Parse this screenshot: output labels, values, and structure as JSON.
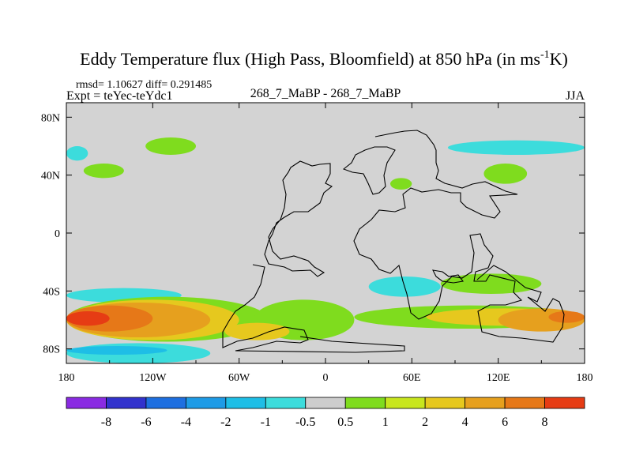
{
  "chart_data": {
    "type": "heatmap",
    "title_main": "Eddy Temperature flux (High Pass, Bloomfield) at 850 hPa (in ms",
    "title_sup": "-1",
    "title_tail": "K)",
    "stats_line": "rmsd= 1.10627 diff= 0.291485",
    "left_subtitle": "Expt = teYec-teYdc1",
    "center_subtitle": "268_7_MaBP - 268_7_MaBP",
    "season": "JJA",
    "x_range": [
      -180,
      180
    ],
    "y_range": [
      -90,
      90
    ],
    "x_ticks": [
      {
        "value": -180,
        "label": "180"
      },
      {
        "value": -120,
        "label": "120W"
      },
      {
        "value": -60,
        "label": "60W"
      },
      {
        "value": 0,
        "label": "0"
      },
      {
        "value": 60,
        "label": "60E"
      },
      {
        "value": 120,
        "label": "120E"
      },
      {
        "value": 180,
        "label": "180"
      }
    ],
    "y_ticks": [
      {
        "value": 80,
        "label": "80N"
      },
      {
        "value": 40,
        "label": "40N"
      },
      {
        "value": 0,
        "label": "0"
      },
      {
        "value": -40,
        "label": "40S"
      },
      {
        "value": -80,
        "label": "80S"
      }
    ],
    "colorbar": {
      "colors": [
        "#8a2be2",
        "#3232cd",
        "#1e6fe0",
        "#1e9be6",
        "#1ebee6",
        "#3cdcdc",
        "#cdcdcd",
        "#7fdc1e",
        "#c8e61e",
        "#e6c81e",
        "#e6a01e",
        "#e67818",
        "#e63c14"
      ],
      "labels": [
        "-8",
        "-6",
        "-4",
        "-2",
        "-1",
        "-0.5",
        "0.5",
        "1",
        "2",
        "4",
        "6",
        "8"
      ]
    },
    "background_color": "#d3d3d3",
    "contour_bands": [
      {
        "color": "#3cdcdc",
        "lat_min": -48,
        "lat_max": -38,
        "lon_min": -180,
        "lon_max": -100
      },
      {
        "color": "#7fdc1e",
        "lat_min": -75,
        "lat_max": -44,
        "lon_min": -180,
        "lon_max": -40
      },
      {
        "color": "#e6c81e",
        "lat_min": -74,
        "lat_max": -46,
        "lon_min": -180,
        "lon_max": -60
      },
      {
        "color": "#e6a01e",
        "lat_min": -72,
        "lat_max": -48,
        "lon_min": -180,
        "lon_max": -80
      },
      {
        "color": "#e67818",
        "lat_min": -68,
        "lat_max": -50,
        "lon_min": -180,
        "lon_max": -120
      },
      {
        "color": "#e63c14",
        "lat_min": -64,
        "lat_max": -54,
        "lon_min": -180,
        "lon_max": -150
      },
      {
        "color": "#3cdcdc",
        "lat_min": -90,
        "lat_max": -76,
        "lon_min": -180,
        "lon_max": -80
      },
      {
        "color": "#1ebee6",
        "lat_min": -84,
        "lat_max": -78,
        "lon_min": -180,
        "lon_max": -110
      },
      {
        "color": "#7fdc1e",
        "lat_min": -74,
        "lat_max": -46,
        "lon_min": -50,
        "lon_max": 20
      },
      {
        "color": "#e6c81e",
        "lat_min": -74,
        "lat_max": -62,
        "lon_min": -70,
        "lon_max": -25
      },
      {
        "color": "#3cdcdc",
        "lat_min": -44,
        "lat_max": -30,
        "lon_min": 30,
        "lon_max": 80
      },
      {
        "color": "#7fdc1e",
        "lat_min": -42,
        "lat_max": -28,
        "lon_min": 80,
        "lon_max": 150
      },
      {
        "color": "#7fdc1e",
        "lat_min": -66,
        "lat_max": -50,
        "lon_min": 20,
        "lon_max": 180
      },
      {
        "color": "#e6c81e",
        "lat_min": -64,
        "lat_max": -52,
        "lon_min": 70,
        "lon_max": 180
      },
      {
        "color": "#e6a01e",
        "lat_min": -68,
        "lat_max": -52,
        "lon_min": 120,
        "lon_max": 180
      },
      {
        "color": "#e67818",
        "lat_min": -62,
        "lat_max": -54,
        "lon_min": 155,
        "lon_max": 180
      },
      {
        "color": "#3cdcdc",
        "lat_min": 50,
        "lat_max": 60,
        "lon_min": -180,
        "lon_max": -165
      },
      {
        "color": "#7fdc1e",
        "lat_min": 38,
        "lat_max": 48,
        "lon_min": -168,
        "lon_max": -140
      },
      {
        "color": "#7fdc1e",
        "lat_min": 54,
        "lat_max": 66,
        "lon_min": -125,
        "lon_max": -90
      },
      {
        "color": "#3cdcdc",
        "lat_min": 54,
        "lat_max": 64,
        "lon_min": 85,
        "lon_max": 180
      },
      {
        "color": "#7fdc1e",
        "lat_min": 34,
        "lat_max": 48,
        "lon_min": 110,
        "lon_max": 140
      },
      {
        "color": "#7fdc1e",
        "lat_min": 30,
        "lat_max": 38,
        "lon_min": 45,
        "lon_max": 60
      }
    ]
  }
}
